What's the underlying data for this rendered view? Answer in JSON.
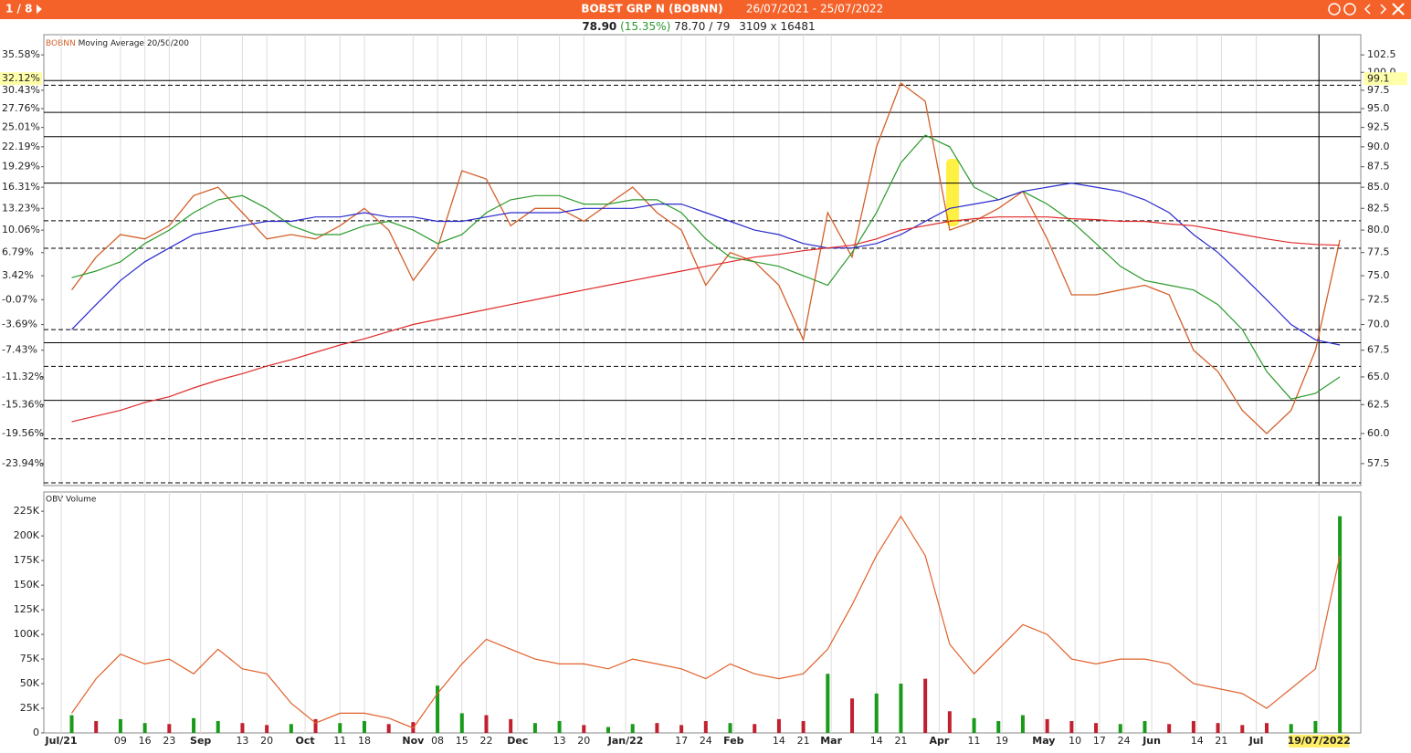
{
  "header": {
    "page": "1 / 8",
    "title": "BOBST GRP N (BOBNN)",
    "range": "26/07/2021 - 25/07/2022"
  },
  "quote": {
    "last": "78.90",
    "change": "(15.35%)",
    "bid_ask": "78.70 / 79",
    "size": "3109 x 16481"
  },
  "chart_data": [
    {
      "type": "line",
      "symbol": "BOBNN",
      "study": "Moving Average 20/50/200",
      "log": true,
      "grid": true,
      "x": [
        "2021-07-26",
        "2021-08-02",
        "2021-08-09",
        "2021-08-16",
        "2021-08-23",
        "2021-08-30",
        "2021-09-06",
        "2021-09-13",
        "2021-09-20",
        "2021-09-27",
        "2021-10-04",
        "2021-10-11",
        "2021-10-18",
        "2021-10-25",
        "2021-11-01",
        "2021-11-08",
        "2021-11-15",
        "2021-11-22",
        "2021-11-29",
        "2021-12-06",
        "2021-12-13",
        "2021-12-20",
        "2021-12-27",
        "2022-01-03",
        "2022-01-10",
        "2022-01-17",
        "2022-01-24",
        "2022-01-31",
        "2022-02-07",
        "2022-02-14",
        "2022-02-21",
        "2022-02-28",
        "2022-03-07",
        "2022-03-14",
        "2022-03-21",
        "2022-03-28",
        "2022-04-04",
        "2022-04-11",
        "2022-04-18",
        "2022-04-25",
        "2022-05-02",
        "2022-05-09",
        "2022-05-16",
        "2022-05-23",
        "2022-05-30",
        "2022-06-06",
        "2022-06-13",
        "2022-06-20",
        "2022-06-27",
        "2022-07-04",
        "2022-07-11",
        "2022-07-18",
        "2022-07-25"
      ],
      "xlim": [
        "2021-07-18",
        "2022-07-31"
      ],
      "series": [
        {
          "name": "BOBNN",
          "color": "#d2602a",
          "values": [
            73.5,
            77,
            79.5,
            79,
            80.5,
            84,
            85,
            82,
            79,
            79.5,
            79,
            80.5,
            82.5,
            80,
            74.5,
            78,
            87,
            86,
            80.5,
            82.5,
            82.5,
            81,
            83,
            85,
            82,
            80,
            74,
            77.5,
            76.5,
            74,
            68.5,
            82,
            77,
            90,
            98.5,
            96,
            80,
            81,
            82.5,
            84.5,
            79,
            73,
            73,
            73.5,
            74,
            73,
            67.5,
            65.5,
            62,
            60,
            62,
            67.5,
            78.9
          ]
        },
        {
          "color": "#2a9a2a",
          "values": [
            74.8,
            75.5,
            76.5,
            78.5,
            80,
            82,
            83.5,
            84,
            82.5,
            80.5,
            79.5,
            79.5,
            80.5,
            81,
            80,
            78.5,
            79.5,
            82,
            83.5,
            84,
            84,
            83,
            83,
            83.5,
            83.5,
            82,
            79,
            77,
            76.5,
            76,
            75,
            74,
            77.5,
            82,
            88,
            91.5,
            90,
            85,
            83.5,
            84.5,
            83,
            81,
            78.5,
            76,
            74.5,
            74,
            73.5,
            72,
            69.5,
            65.5,
            63,
            63.5,
            65
          ]
        },
        {
          "color": "#2a2acc",
          "values": [
            69.5,
            72,
            74.5,
            76.5,
            78,
            79.5,
            80,
            80.5,
            81,
            81,
            81.5,
            81.5,
            82,
            81.5,
            81.5,
            81,
            81,
            81.5,
            82,
            82,
            82,
            82.5,
            82.5,
            82.5,
            83,
            83,
            82,
            81,
            80,
            79.5,
            78.5,
            78,
            78,
            78.5,
            79.5,
            81,
            82.5,
            83,
            83.5,
            84.5,
            85,
            85.5,
            85,
            84.5,
            83.5,
            82,
            79.5,
            77.5,
            75,
            72.5,
            70,
            68.5,
            68
          ]
        },
        {
          "color": "#e02a2a",
          "values": [
            61,
            61.5,
            62,
            62.7,
            63.2,
            64,
            64.7,
            65.3,
            66,
            66.6,
            67.3,
            68,
            68.6,
            69.3,
            70,
            70.5,
            71,
            71.5,
            72,
            72.5,
            73,
            73.5,
            74,
            74.5,
            75,
            75.5,
            76,
            76.5,
            77,
            77.3,
            77.7,
            78,
            78.3,
            79,
            80,
            80.5,
            81,
            81.3,
            81.5,
            81.5,
            81.5,
            81.3,
            81.2,
            81,
            81,
            80.7,
            80.5,
            80,
            79.5,
            79,
            78.6,
            78.4,
            78.3
          ]
        }
      ],
      "ylim": [
        55.74,
        105.47
      ],
      "yticks": [
        102.5,
        {
          "value": 100,
          "label": "100.0"
        },
        97.5,
        {
          "value": 95,
          "label": "95.0"
        },
        92.5,
        {
          "value": 90,
          "label": "90.0"
        },
        87.5,
        {
          "value": 85,
          "label": "85.0"
        },
        82.5,
        {
          "value": 80,
          "label": "80.0"
        },
        77.5,
        {
          "value": 75,
          "label": "75.0"
        },
        72.5,
        {
          "value": 70,
          "label": "70.0"
        },
        67.5,
        {
          "value": 65,
          "label": "65.0"
        },
        62.5,
        {
          "value": 60,
          "label": "60.0"
        },
        57.5
      ],
      "y2lim": [
        -27.14,
        38.52
      ],
      "y2ticks": [
        {
          "value": 35.58,
          "label": "35.58%"
        },
        {
          "value": 30.43,
          "label": "30.43%"
        },
        {
          "value": 27.76,
          "label": "27.76%"
        },
        {
          "value": 25.01,
          "label": "25.01%"
        },
        {
          "value": 22.19,
          "label": "22.19%"
        },
        {
          "value": 19.29,
          "label": "19.29%"
        },
        {
          "value": 16.31,
          "label": "16.31%"
        },
        {
          "value": 13.23,
          "label": "13.23%"
        },
        {
          "value": 10.06,
          "label": "10.06%"
        },
        {
          "value": 6.79,
          "label": "6.79%"
        },
        {
          "value": 3.42,
          "label": "3.42%"
        },
        {
          "value": -0.07,
          "label": "-0.07%"
        },
        {
          "value": -3.69,
          "label": "-3.69%"
        },
        {
          "value": -7.43,
          "label": "-7.43%"
        },
        {
          "value": -11.32,
          "label": "-11.32%"
        },
        {
          "value": -15.36,
          "label": "-15.36%"
        },
        {
          "value": -19.56,
          "label": "-19.56%"
        },
        {
          "value": -23.94,
          "label": "-23.94%"
        }
      ],
      "current": {
        "y2": {
          "value": 32.12,
          "label": "32.12%"
        },
        "y": 99.1
      },
      "hlines": [
        {
          "value": 98.85,
          "style": "solid"
        },
        {
          "value": 98.2,
          "style": "dashed"
        },
        {
          "value": 94.5,
          "style": "solid"
        },
        {
          "value": 91.3,
          "style": "solid"
        },
        {
          "value": 85.5,
          "style": "solid"
        },
        {
          "value": 81.07,
          "style": "dashed"
        },
        {
          "value": 77.97,
          "style": "dashed"
        },
        {
          "value": 69.5,
          "style": "dashed"
        },
        {
          "value": 68.22,
          "style": "solid"
        },
        {
          "value": 65.98,
          "style": "dashed"
        },
        {
          "value": 62.88,
          "style": "solid"
        },
        {
          "value": 59.55,
          "style": "dashed"
        },
        {
          "value": 55.96,
          "style": "dashed"
        }
      ]
    },
    {
      "type": "bar",
      "title": "OBV Volume",
      "x": [
        "2021-07-26",
        "2021-08-02",
        "2021-08-09",
        "2021-08-16",
        "2021-08-23",
        "2021-08-30",
        "2021-09-06",
        "2021-09-13",
        "2021-09-20",
        "2021-09-27",
        "2021-10-04",
        "2021-10-11",
        "2021-10-18",
        "2021-10-25",
        "2021-11-01",
        "2021-11-08",
        "2021-11-15",
        "2021-11-22",
        "2021-11-29",
        "2021-12-06",
        "2021-12-13",
        "2021-12-20",
        "2021-12-27",
        "2022-01-03",
        "2022-01-10",
        "2022-01-17",
        "2022-01-24",
        "2022-01-31",
        "2022-02-07",
        "2022-02-14",
        "2022-02-21",
        "2022-02-28",
        "2022-03-07",
        "2022-03-14",
        "2022-03-21",
        "2022-03-28",
        "2022-04-04",
        "2022-04-11",
        "2022-04-18",
        "2022-04-25",
        "2022-05-02",
        "2022-05-09",
        "2022-05-16",
        "2022-05-23",
        "2022-05-30",
        "2022-06-06",
        "2022-06-13",
        "2022-06-20",
        "2022-06-27",
        "2022-07-04",
        "2022-07-11",
        "2022-07-18",
        "2022-07-25"
      ],
      "xlim": [
        "2021-07-18",
        "2022-07-31"
      ],
      "xticks": [
        {
          "value": "2021-07-23",
          "label": "Jul/21"
        },
        {
          "value": "2021-08-09",
          "label": "09"
        },
        {
          "value": "2021-08-16",
          "label": "16"
        },
        {
          "value": "2021-08-23",
          "label": "23"
        },
        {
          "value": "2021-09-01",
          "label": "Sep"
        },
        {
          "value": "2021-09-13",
          "label": "13"
        },
        {
          "value": "2021-09-20",
          "label": "20"
        },
        {
          "value": "2021-10-01",
          "label": "Oct"
        },
        {
          "value": "2021-10-11",
          "label": "11"
        },
        {
          "value": "2021-10-18",
          "label": "18"
        },
        {
          "value": "2021-11-01",
          "label": "Nov"
        },
        {
          "value": "2021-11-08",
          "label": "08"
        },
        {
          "value": "2021-11-15",
          "label": "15"
        },
        {
          "value": "2021-11-22",
          "label": "22"
        },
        {
          "value": "2021-12-01",
          "label": "Dec"
        },
        {
          "value": "2021-12-13",
          "label": "13"
        },
        {
          "value": "2021-12-20",
          "label": "20"
        },
        {
          "value": "2022-01-01",
          "label": "Jan/22"
        },
        {
          "value": "2022-01-17",
          "label": "17"
        },
        {
          "value": "2022-01-24",
          "label": "24"
        },
        {
          "value": "2022-02-01",
          "label": "Feb"
        },
        {
          "value": "2022-02-14",
          "label": "14"
        },
        {
          "value": "2022-02-21",
          "label": "21"
        },
        {
          "value": "2022-03-01",
          "label": "Mar"
        },
        {
          "value": "2022-03-14",
          "label": "14"
        },
        {
          "value": "2022-03-21",
          "label": "21"
        },
        {
          "value": "2022-04-01",
          "label": "Apr"
        },
        {
          "value": "2022-04-11",
          "label": "11"
        },
        {
          "value": "2022-04-19",
          "label": "19"
        },
        {
          "value": "2022-05-01",
          "label": "May"
        },
        {
          "value": "2022-05-10",
          "label": "10"
        },
        {
          "value": "2022-05-17",
          "label": "17"
        },
        {
          "value": "2022-05-24",
          "label": "24"
        },
        {
          "value": "2022-06-01",
          "label": "Jun"
        },
        {
          "value": "2022-06-14",
          "label": "14"
        },
        {
          "value": "2022-06-21",
          "label": "21"
        },
        {
          "value": "2022-07-01",
          "label": "Jul"
        },
        {
          "value": "2022-07-19",
          "label": "19/07/2022"
        }
      ],
      "series": [
        {
          "type": "bar",
          "values": [
            18000,
            12000,
            14000,
            10000,
            9000,
            15000,
            12000,
            10000,
            8000,
            9000,
            14000,
            10000,
            12000,
            9000,
            11000,
            48000,
            20000,
            18000,
            14000,
            10000,
            12000,
            8000,
            6000,
            9000,
            10000,
            8000,
            12000,
            10000,
            9000,
            14000,
            12000,
            60000,
            35000,
            40000,
            50000,
            55000,
            22000,
            15000,
            12000,
            18000,
            14000,
            12000,
            10000,
            9000,
            12000,
            9000,
            12000,
            10000,
            8000,
            10000,
            9000,
            12000,
            220000
          ],
          "colors": [
            "#1a9a1a",
            "#c02030",
            "#1a9a1a",
            "#1a9a1a",
            "#c02030",
            "#1a9a1a",
            "#1a9a1a",
            "#c02030",
            "#c02030",
            "#1a9a1a",
            "#c02030",
            "#1a9a1a",
            "#1a9a1a",
            "#c02030",
            "#c02030",
            "#1a9a1a",
            "#1a9a1a",
            "#c02030",
            "#c02030",
            "#1a9a1a",
            "#1a9a1a",
            "#c02030",
            "#1a9a1a",
            "#1a9a1a",
            "#c02030",
            "#c02030",
            "#c02030",
            "#1a9a1a",
            "#c02030",
            "#c02030",
            "#c02030",
            "#1a9a1a",
            "#c02030",
            "#1a9a1a",
            "#1a9a1a",
            "#c02030",
            "#c02030",
            "#1a9a1a",
            "#1a9a1a",
            "#1a9a1a",
            "#c02030",
            "#c02030",
            "#c02030",
            "#1a9a1a",
            "#1a9a1a",
            "#c02030",
            "#c02030",
            "#c02030",
            "#c02030",
            "#c02030",
            "#1a9a1a",
            "#1a9a1a",
            "#1a9a1a"
          ]
        },
        {
          "type": "line",
          "color": "#e0602a",
          "values": [
            20000,
            55000,
            80000,
            70000,
            75000,
            60000,
            85000,
            65000,
            60000,
            30000,
            10000,
            20000,
            20000,
            15000,
            5000,
            40000,
            70000,
            95000,
            85000,
            75000,
            70000,
            70000,
            65000,
            75000,
            70000,
            65000,
            55000,
            70000,
            60000,
            55000,
            60000,
            85000,
            130000,
            180000,
            220000,
            180000,
            90000,
            60000,
            85000,
            110000,
            100000,
            75000,
            70000,
            75000,
            75000,
            70000,
            50000,
            45000,
            40000,
            25000,
            45000,
            65000,
            180000
          ]
        }
      ],
      "ylim": [
        0,
        244600
      ],
      "yticks": [
        0,
        {
          "value": 25000,
          "label": "25K"
        },
        {
          "value": 50000,
          "label": "50K"
        },
        {
          "value": 75000,
          "label": "75K"
        },
        {
          "value": 100000,
          "label": "100K"
        },
        {
          "value": 125000,
          "label": "125K"
        },
        {
          "value": 150000,
          "label": "150K"
        },
        {
          "value": 175000,
          "label": "175K"
        },
        {
          "value": 200000,
          "label": "200K"
        },
        {
          "value": 225000,
          "label": "225K"
        }
      ]
    }
  ]
}
